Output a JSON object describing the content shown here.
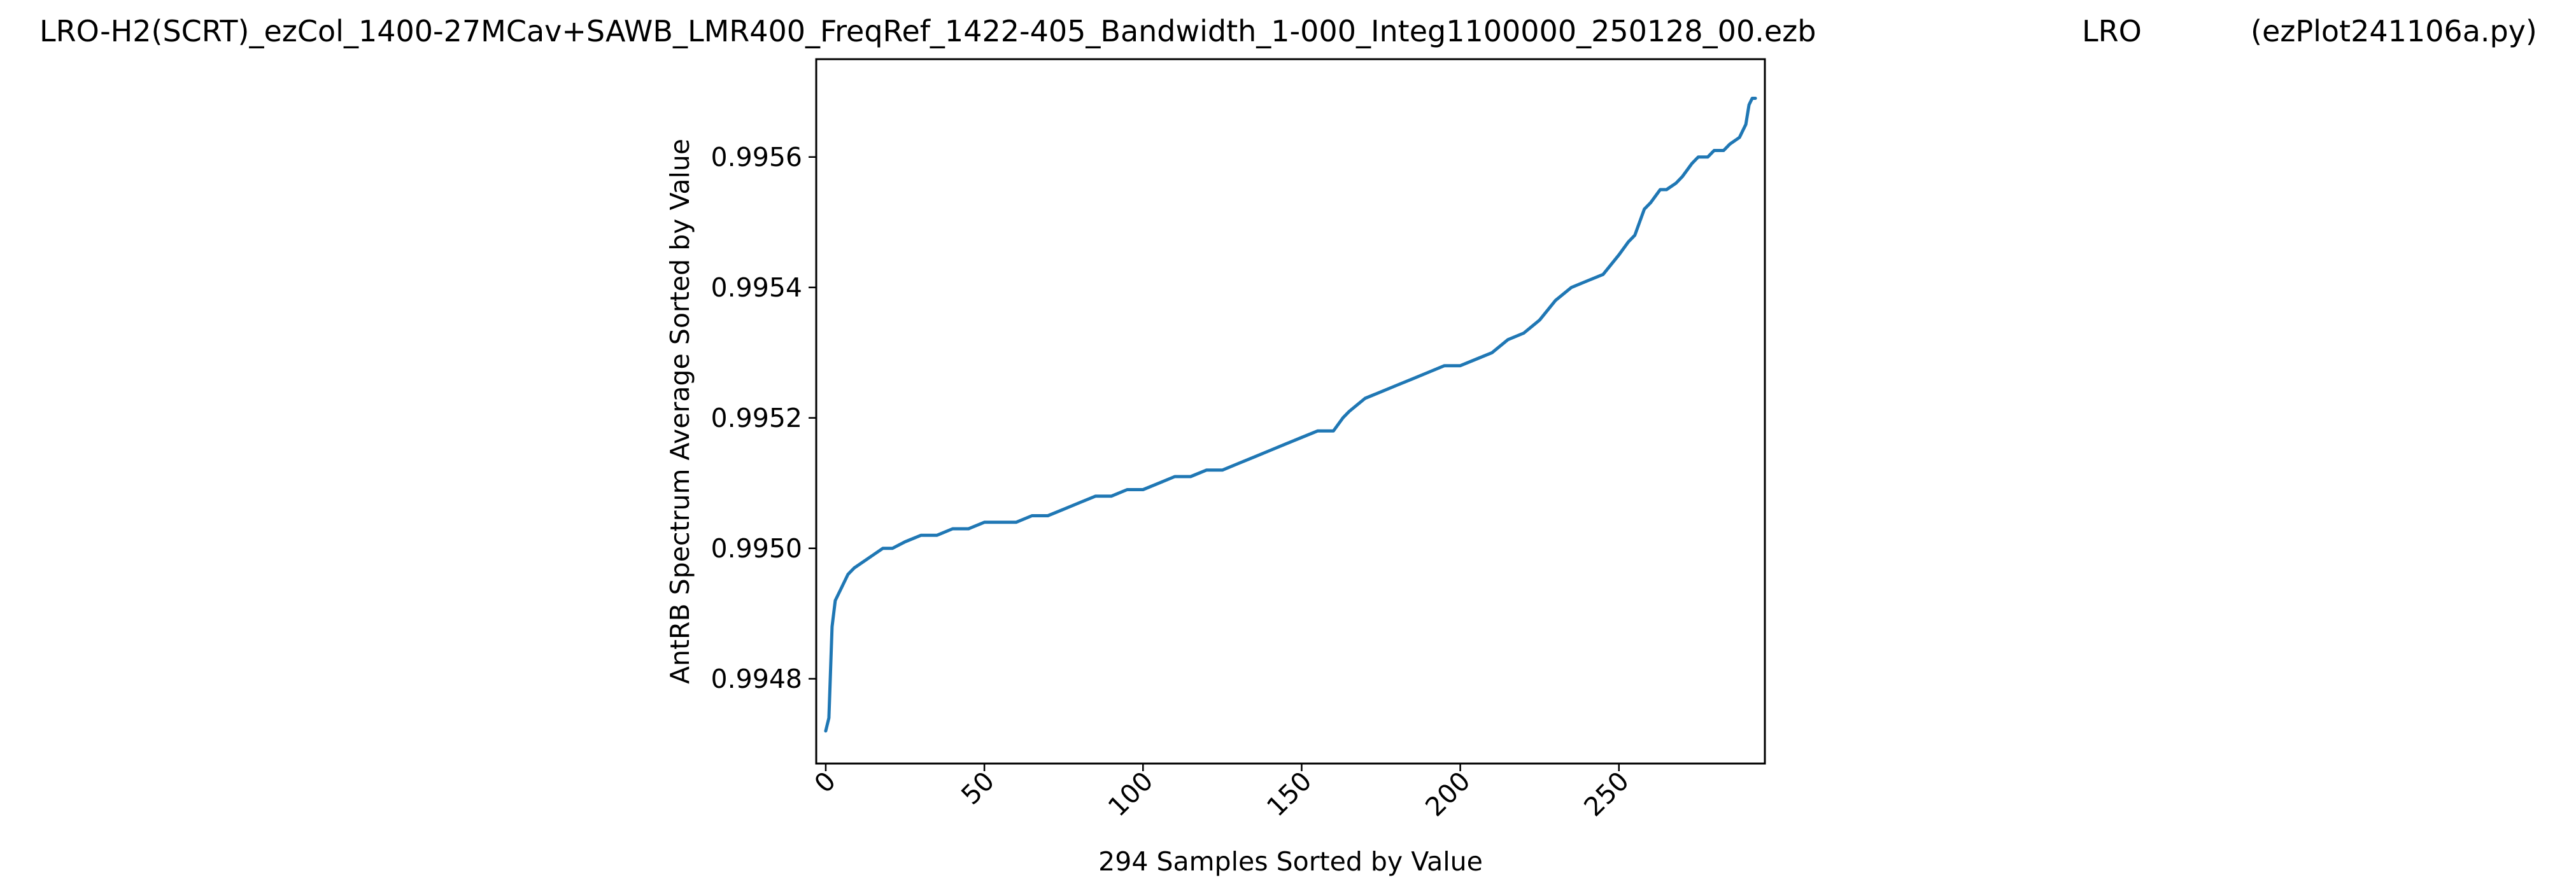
{
  "header": {
    "filename": "LRO-H2(SCRT)_ezCol_1400-27MCav+SAWB_LMR400_FreqRef_1422-405_Bandwidth_1-000_Integ1100000_250128_00.ezb",
    "site": "LRO",
    "script": "(ezPlot241106a.py)"
  },
  "chart_data": {
    "type": "line",
    "title": "",
    "xlabel": "294 Samples Sorted by Value",
    "ylabel": "AntRB Spectrum Average Sorted by Value",
    "xlim": [
      -3,
      296
    ],
    "ylim": [
      0.99467,
      0.99575
    ],
    "x_ticks": [
      0,
      50,
      100,
      150,
      200,
      250
    ],
    "x_tick_labels": [
      "0",
      "50",
      "100",
      "150",
      "200",
      "250"
    ],
    "y_ticks": [
      0.9948,
      0.995,
      0.9952,
      0.9954,
      0.9956
    ],
    "y_tick_labels": [
      "0.9948",
      "0.9950",
      "0.9952",
      "0.9954",
      "0.9956"
    ],
    "grid": false,
    "line_color": "#1f77b4",
    "series": [
      {
        "x": [
          0,
          1,
          2,
          3,
          5,
          7,
          9,
          12,
          15,
          18,
          21,
          25,
          30,
          35,
          40,
          45,
          50,
          55,
          60,
          65,
          70,
          75,
          80,
          85,
          90,
          95,
          100,
          105,
          110,
          115,
          120,
          125,
          130,
          135,
          140,
          145,
          150,
          155,
          160,
          163,
          165,
          170,
          175,
          180,
          185,
          190,
          195,
          200,
          205,
          210,
          215,
          220,
          225,
          230,
          235,
          240,
          245,
          250,
          253,
          255,
          258,
          260,
          263,
          265,
          268,
          270,
          273,
          275,
          278,
          280,
          283,
          285,
          288,
          290,
          291,
          292,
          293
        ],
        "y": [
          0.99472,
          0.99474,
          0.99488,
          0.99492,
          0.99494,
          0.99496,
          0.99497,
          0.99498,
          0.99499,
          0.995,
          0.995,
          0.99501,
          0.99502,
          0.99502,
          0.99503,
          0.99503,
          0.99504,
          0.99504,
          0.99504,
          0.99505,
          0.99505,
          0.99506,
          0.99507,
          0.99508,
          0.99508,
          0.99509,
          0.99509,
          0.9951,
          0.99511,
          0.99511,
          0.99512,
          0.99512,
          0.99513,
          0.99514,
          0.99515,
          0.99516,
          0.99517,
          0.99518,
          0.99518,
          0.9952,
          0.99521,
          0.99523,
          0.99524,
          0.99525,
          0.99526,
          0.99527,
          0.99528,
          0.99528,
          0.99529,
          0.9953,
          0.99532,
          0.99533,
          0.99535,
          0.99538,
          0.9954,
          0.99541,
          0.99542,
          0.99545,
          0.99547,
          0.99548,
          0.99552,
          0.99553,
          0.99555,
          0.99555,
          0.99556,
          0.99557,
          0.99559,
          0.9956,
          0.9956,
          0.99561,
          0.99561,
          0.99562,
          0.99563,
          0.99565,
          0.99568,
          0.99569,
          0.99569
        ]
      }
    ]
  }
}
